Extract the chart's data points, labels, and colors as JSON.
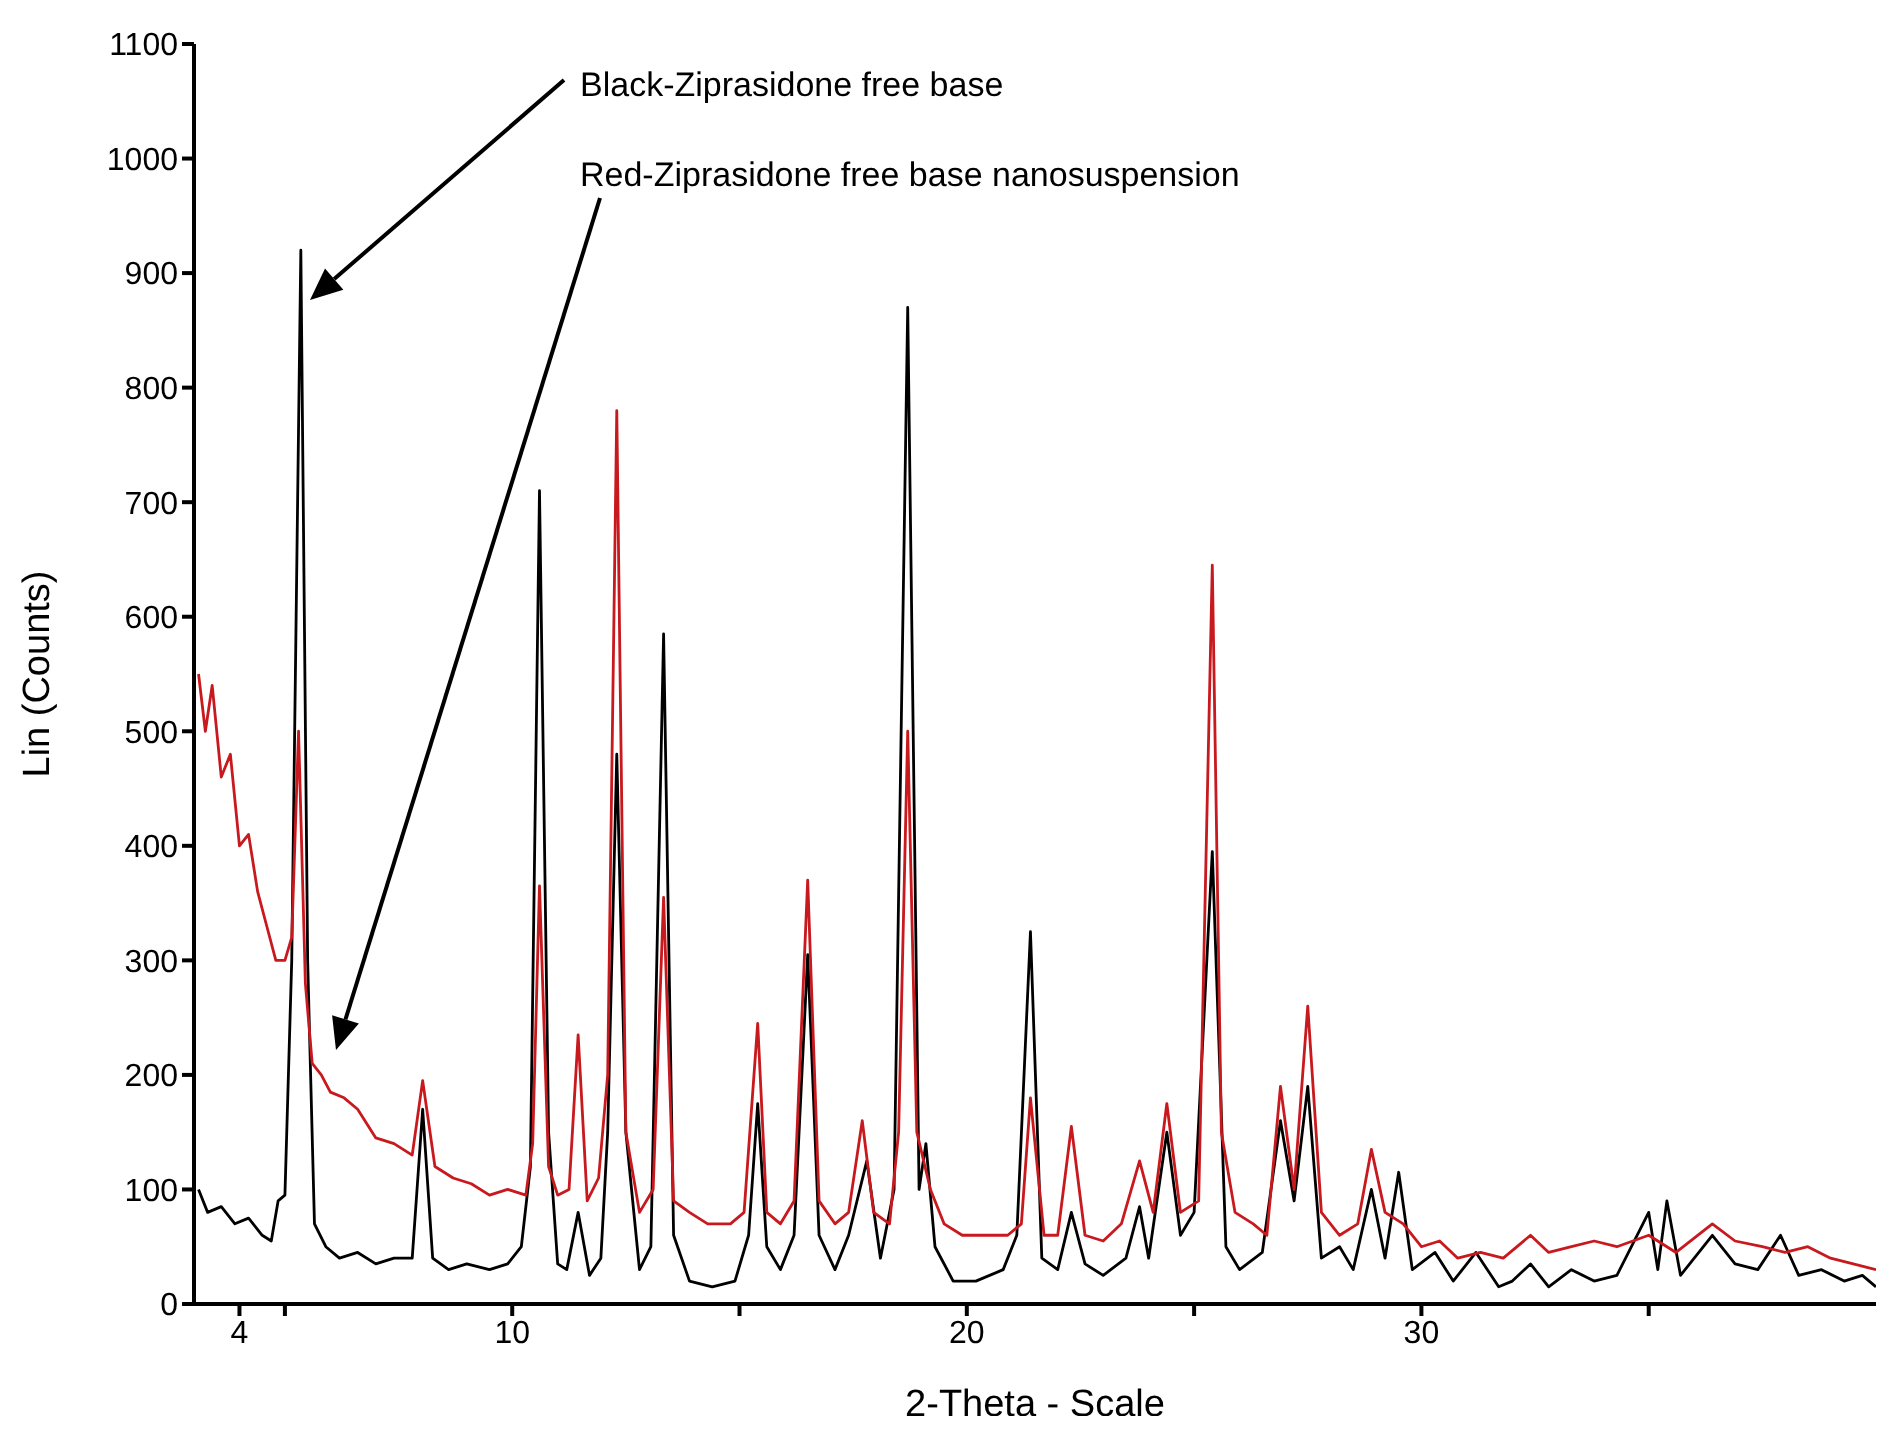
{
  "chart_data": {
    "type": "line",
    "xlabel": "2-Theta - Scale",
    "ylabel": "Lin (Counts)",
    "xlim": [
      3,
      40
    ],
    "ylim": [
      0,
      1100
    ],
    "xticks": [
      {
        "value": 4,
        "label": "4"
      },
      {
        "value": 5,
        "label": null
      },
      10,
      {
        "value": 15,
        "label": null
      },
      20,
      {
        "value": 25,
        "label": null
      },
      30,
      {
        "value": 35,
        "label": null
      }
    ],
    "yticks": [
      0,
      100,
      200,
      300,
      400,
      500,
      600,
      700,
      800,
      900,
      1000,
      1100
    ],
    "grid": false,
    "legend": false,
    "marker": "none",
    "line_style": "solid",
    "series": [
      {
        "color": "#000000",
        "x": [
          3.1,
          3.3,
          3.6,
          3.9,
          4.2,
          4.5,
          4.7,
          4.85,
          5.0,
          5.15,
          5.35,
          5.5,
          5.65,
          5.9,
          6.2,
          6.6,
          7.0,
          7.4,
          7.8,
          8.03,
          8.25,
          8.6,
          9.0,
          9.5,
          9.9,
          10.2,
          10.4,
          10.6,
          10.8,
          11.0,
          11.2,
          11.45,
          11.7,
          11.95,
          12.1,
          12.3,
          12.5,
          12.8,
          13.05,
          13.33,
          13.55,
          13.9,
          14.4,
          14.9,
          15.2,
          15.4,
          15.6,
          15.9,
          16.2,
          16.5,
          16.75,
          17.1,
          17.4,
          17.8,
          18.1,
          18.4,
          18.7,
          18.95,
          19.1,
          19.3,
          19.7,
          20.2,
          20.8,
          21.1,
          21.4,
          21.65,
          22.0,
          22.3,
          22.6,
          23.0,
          23.5,
          23.8,
          24.0,
          24.4,
          24.7,
          25.0,
          25.4,
          25.7,
          26.0,
          26.5,
          26.9,
          27.2,
          27.5,
          27.8,
          28.2,
          28.5,
          28.9,
          29.2,
          29.5,
          29.8,
          30.3,
          30.7,
          31.2,
          31.7,
          32.0,
          32.4,
          32.8,
          33.3,
          33.8,
          34.3,
          35.0,
          35.2,
          35.4,
          35.7,
          36.4,
          36.9,
          37.4,
          37.9,
          38.3,
          38.8,
          39.3,
          39.7,
          40.0
        ],
        "values": [
          100,
          80,
          85,
          70,
          75,
          60,
          55,
          90,
          95,
          300,
          920,
          300,
          70,
          50,
          40,
          45,
          35,
          40,
          40,
          170,
          40,
          30,
          35,
          30,
          35,
          50,
          120,
          710,
          150,
          35,
          30,
          80,
          25,
          40,
          150,
          480,
          150,
          30,
          50,
          585,
          60,
          20,
          15,
          20,
          60,
          175,
          50,
          30,
          60,
          305,
          60,
          30,
          60,
          125,
          40,
          100,
          870,
          100,
          140,
          50,
          20,
          20,
          30,
          60,
          325,
          40,
          30,
          80,
          35,
          25,
          40,
          85,
          40,
          150,
          60,
          80,
          395,
          50,
          30,
          45,
          160,
          90,
          190,
          40,
          50,
          30,
          100,
          40,
          115,
          30,
          45,
          20,
          45,
          15,
          20,
          35,
          15,
          30,
          20,
          25,
          80,
          30,
          90,
          25,
          60,
          35,
          30,
          60,
          25,
          30,
          20,
          25,
          15
        ]
      },
      {
        "color": "#c8191e",
        "x": [
          3.1,
          3.25,
          3.4,
          3.6,
          3.8,
          4.0,
          4.2,
          4.4,
          4.6,
          4.8,
          5.0,
          5.15,
          5.3,
          5.45,
          5.6,
          5.8,
          6.0,
          6.3,
          6.6,
          7.0,
          7.4,
          7.8,
          8.03,
          8.3,
          8.7,
          9.1,
          9.5,
          9.9,
          10.3,
          10.45,
          10.6,
          10.8,
          11.0,
          11.25,
          11.45,
          11.65,
          11.9,
          12.1,
          12.3,
          12.5,
          12.8,
          13.1,
          13.33,
          13.55,
          13.9,
          14.3,
          14.8,
          15.1,
          15.4,
          15.6,
          15.9,
          16.2,
          16.5,
          16.75,
          17.1,
          17.4,
          17.7,
          17.95,
          18.3,
          18.5,
          18.7,
          18.9,
          19.2,
          19.5,
          19.9,
          20.4,
          20.9,
          21.2,
          21.4,
          21.7,
          22.0,
          22.3,
          22.6,
          23.0,
          23.4,
          23.8,
          24.1,
          24.4,
          24.7,
          25.1,
          25.4,
          25.6,
          25.9,
          26.3,
          26.6,
          26.9,
          27.2,
          27.5,
          27.8,
          28.2,
          28.6,
          28.9,
          29.2,
          29.6,
          30.0,
          30.4,
          30.8,
          31.3,
          31.8,
          32.4,
          32.8,
          33.3,
          33.8,
          34.3,
          35.0,
          35.6,
          36.4,
          36.9,
          37.5,
          38.0,
          38.5,
          39.0,
          39.5,
          40.0
        ],
        "values": [
          550,
          500,
          540,
          460,
          480,
          400,
          410,
          360,
          330,
          300,
          300,
          320,
          500,
          280,
          210,
          200,
          185,
          180,
          170,
          145,
          140,
          130,
          195,
          120,
          110,
          105,
          95,
          100,
          95,
          140,
          365,
          120,
          95,
          100,
          235,
          90,
          110,
          200,
          780,
          150,
          80,
          100,
          355,
          90,
          80,
          70,
          70,
          80,
          245,
          80,
          70,
          90,
          370,
          90,
          70,
          80,
          160,
          80,
          70,
          150,
          500,
          150,
          100,
          70,
          60,
          60,
          60,
          70,
          180,
          60,
          60,
          155,
          60,
          55,
          70,
          125,
          80,
          175,
          80,
          90,
          645,
          150,
          80,
          70,
          60,
          190,
          100,
          260,
          80,
          60,
          70,
          135,
          80,
          70,
          50,
          55,
          40,
          45,
          40,
          60,
          45,
          50,
          55,
          50,
          60,
          45,
          70,
          55,
          50,
          45,
          50,
          40,
          35,
          30
        ]
      }
    ],
    "annotations": [
      "Black-Ziprasidone free base",
      "Red-Ziprasidone free base nanosuspension"
    ]
  }
}
